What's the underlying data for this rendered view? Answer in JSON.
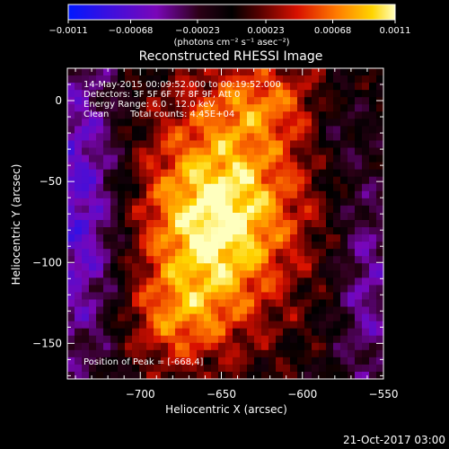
{
  "chart_data": {
    "type": "heatmap",
    "title": "Reconstructed RHESSI Image",
    "xlabel": "Heliocentric X (arcsec)",
    "ylabel": "Heliocentric Y (arcsec)",
    "xlim": [
      -745,
      -550
    ],
    "ylim": [
      -172,
      20
    ],
    "x_ticks": [
      -700,
      -650,
      -600,
      -550
    ],
    "x_tick_labels": [
      "−700",
      "−650",
      "−600",
      "−550"
    ],
    "y_ticks": [
      0,
      -50,
      -100,
      -150
    ],
    "y_tick_labels": [
      "0",
      "−50",
      "−100",
      "−150"
    ],
    "colorbar": {
      "range": [
        -0.0011,
        0.0011
      ],
      "ticks": [
        -0.0011,
        -0.00068,
        -0.00023,
        0.00023,
        0.00068,
        0.0011
      ],
      "tick_labels": [
        "−0.0011",
        "−0.00068",
        "−0.00023",
        "0.00023",
        "0.00068",
        "0.0011"
      ],
      "units": "(photons cm⁻² s⁻¹ asec⁻²)"
    },
    "annotations": {
      "time": "14-May-2015 00:09:52.000 to 00:19:52.000",
      "detectors": "Detectors: 3F 5F 6F 7F 8F 9F, Att 0",
      "energy": "Energy Range: 6.0 - 12.0 keV",
      "clean": "Clean",
      "counts": "Total counts: 4.45E+04",
      "peak": "Position of Peak = [-668,4]"
    },
    "peak": [
      -668,
      4
    ],
    "footer": "21-Oct-2017 03:00"
  }
}
